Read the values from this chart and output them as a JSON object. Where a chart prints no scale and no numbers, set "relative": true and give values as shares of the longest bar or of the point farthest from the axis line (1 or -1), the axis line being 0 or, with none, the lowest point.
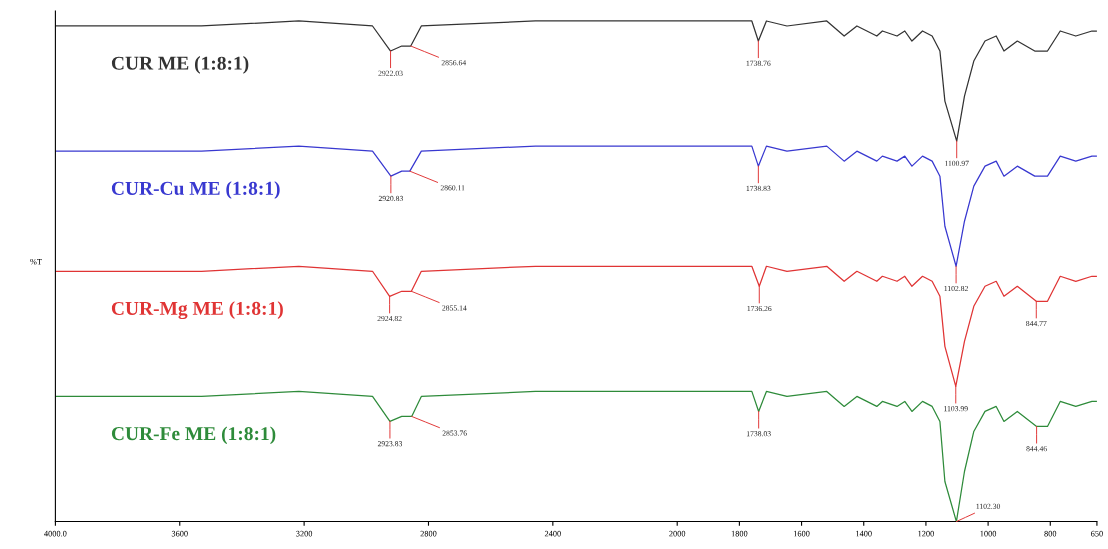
{
  "chart_data": {
    "type": "line",
    "relative": true,
    "ylabel": "%T",
    "xlim": [
      4000,
      650
    ],
    "xticks": [
      {
        "value": 4000,
        "label": "4000.0"
      },
      3600,
      3200,
      2800,
      2400,
      2000,
      1800,
      1600,
      1400,
      1200,
      1000,
      800,
      650
    ],
    "grid": false,
    "legend": false,
    "marker": "none",
    "line_style": "solid",
    "series": [
      {
        "name": "CUR ME (1:8:1)",
        "color": "#333333",
        "x": [
          4000,
          3799,
          3530,
          3217,
          2980,
          2922,
          2886,
          2857,
          2823,
          2456,
          1914,
          1760,
          1739,
          1713,
          1647,
          1519,
          1463,
          1422,
          1358,
          1340,
          1293,
          1268,
          1245,
          1211,
          1180,
          1155,
          1139,
          1101,
          1076,
          1046,
          1010,
          974,
          949,
          906,
          850,
          809,
          768,
          718,
          666,
          650
        ],
        "values": [
          0.99,
          0.99,
          0.99,
          1.0,
          0.99,
          0.94,
          0.95,
          0.95,
          0.99,
          1.0,
          1.0,
          1.0,
          0.96,
          1.0,
          0.99,
          1.0,
          0.97,
          0.99,
          0.97,
          0.98,
          0.97,
          0.98,
          0.96,
          0.98,
          0.97,
          0.94,
          0.84,
          0.76,
          0.85,
          0.92,
          0.96,
          0.97,
          0.94,
          0.96,
          0.94,
          0.94,
          0.98,
          0.97,
          0.98,
          0.98
        ]
      },
      {
        "name": "CUR-Cu ME (1:8:1)",
        "color": "#3838d0",
        "x": [
          4000,
          3799,
          3530,
          3217,
          2980,
          2921,
          2886,
          2860,
          2823,
          2456,
          1914,
          1760,
          1739,
          1713,
          1647,
          1519,
          1463,
          1422,
          1358,
          1340,
          1293,
          1268,
          1245,
          1211,
          1180,
          1155,
          1139,
          1103,
          1076,
          1046,
          1010,
          974,
          949,
          906,
          850,
          809,
          768,
          718,
          666,
          650
        ],
        "values": [
          0.74,
          0.74,
          0.74,
          0.75,
          0.74,
          0.69,
          0.7,
          0.7,
          0.74,
          0.75,
          0.75,
          0.75,
          0.71,
          0.75,
          0.74,
          0.75,
          0.72,
          0.74,
          0.72,
          0.73,
          0.72,
          0.73,
          0.71,
          0.73,
          0.72,
          0.69,
          0.59,
          0.51,
          0.6,
          0.67,
          0.71,
          0.72,
          0.69,
          0.71,
          0.69,
          0.69,
          0.73,
          0.72,
          0.73,
          0.73
        ]
      },
      {
        "name": "CUR-Mg ME (1:8:1)",
        "color": "#e03434",
        "x": [
          4000,
          3799,
          3530,
          3217,
          2980,
          2925,
          2886,
          2855,
          2823,
          2456,
          1914,
          1760,
          1736,
          1713,
          1647,
          1519,
          1463,
          1422,
          1358,
          1340,
          1293,
          1268,
          1245,
          1211,
          1180,
          1155,
          1139,
          1104,
          1076,
          1046,
          1010,
          974,
          949,
          906,
          845,
          809,
          768,
          718,
          666,
          650
        ],
        "values": [
          0.5,
          0.5,
          0.5,
          0.51,
          0.5,
          0.45,
          0.46,
          0.46,
          0.5,
          0.51,
          0.51,
          0.51,
          0.47,
          0.51,
          0.5,
          0.51,
          0.48,
          0.5,
          0.48,
          0.49,
          0.48,
          0.49,
          0.47,
          0.49,
          0.48,
          0.45,
          0.35,
          0.27,
          0.36,
          0.43,
          0.47,
          0.48,
          0.45,
          0.47,
          0.44,
          0.44,
          0.49,
          0.48,
          0.49,
          0.49
        ]
      },
      {
        "name": "CUR-Fe ME (1:8:1)",
        "color": "#2e8b3a",
        "x": [
          4000,
          3799,
          3530,
          3217,
          2980,
          2924,
          2886,
          2854,
          2823,
          2456,
          1914,
          1760,
          1738,
          1713,
          1647,
          1519,
          1463,
          1422,
          1358,
          1340,
          1293,
          1268,
          1245,
          1211,
          1180,
          1155,
          1139,
          1102,
          1076,
          1046,
          1010,
          974,
          949,
          906,
          844,
          809,
          768,
          718,
          666,
          650
        ],
        "values": [
          0.25,
          0.25,
          0.25,
          0.26,
          0.25,
          0.2,
          0.21,
          0.21,
          0.25,
          0.26,
          0.26,
          0.26,
          0.22,
          0.26,
          0.25,
          0.26,
          0.23,
          0.25,
          0.23,
          0.24,
          0.23,
          0.24,
          0.22,
          0.24,
          0.23,
          0.2,
          0.08,
          0.0,
          0.1,
          0.18,
          0.22,
          0.23,
          0.2,
          0.22,
          0.19,
          0.19,
          0.24,
          0.23,
          0.24,
          0.24
        ]
      }
    ],
    "annotations": [
      {
        "text": "2922.03",
        "x": 2922,
        "y": 0.94
      },
      {
        "text": "2856.64",
        "x": 2857,
        "y": 0.95
      },
      {
        "text": "1738.76",
        "x": 1739,
        "y": 0.96
      },
      {
        "text": "1100.97",
        "x": 1101,
        "y": 0.76
      },
      {
        "text": "2920.83",
        "x": 2921,
        "y": 0.69
      },
      {
        "text": "2860.11",
        "x": 2860,
        "y": 0.7
      },
      {
        "text": "1738.83",
        "x": 1739,
        "y": 0.71
      },
      {
        "text": "1102.82",
        "x": 1103,
        "y": 0.51
      },
      {
        "text": "2924.82",
        "x": 2925,
        "y": 0.45
      },
      {
        "text": "2855.14",
        "x": 2855,
        "y": 0.46
      },
      {
        "text": "1736.26",
        "x": 1736,
        "y": 0.47
      },
      {
        "text": "1103.99",
        "x": 1104,
        "y": 0.27
      },
      {
        "text": "844.77",
        "x": 845,
        "y": 0.44
      },
      {
        "text": "2923.83",
        "x": 2924,
        "y": 0.2
      },
      {
        "text": "2853.76",
        "x": 2854,
        "y": 0.21
      },
      {
        "text": "1738.03",
        "x": 1738,
        "y": 0.22
      },
      {
        "text": "1102.30",
        "x": 1102,
        "y": 0.0
      },
      {
        "text": "844.46",
        "x": 844,
        "y": 0.19
      }
    ]
  }
}
